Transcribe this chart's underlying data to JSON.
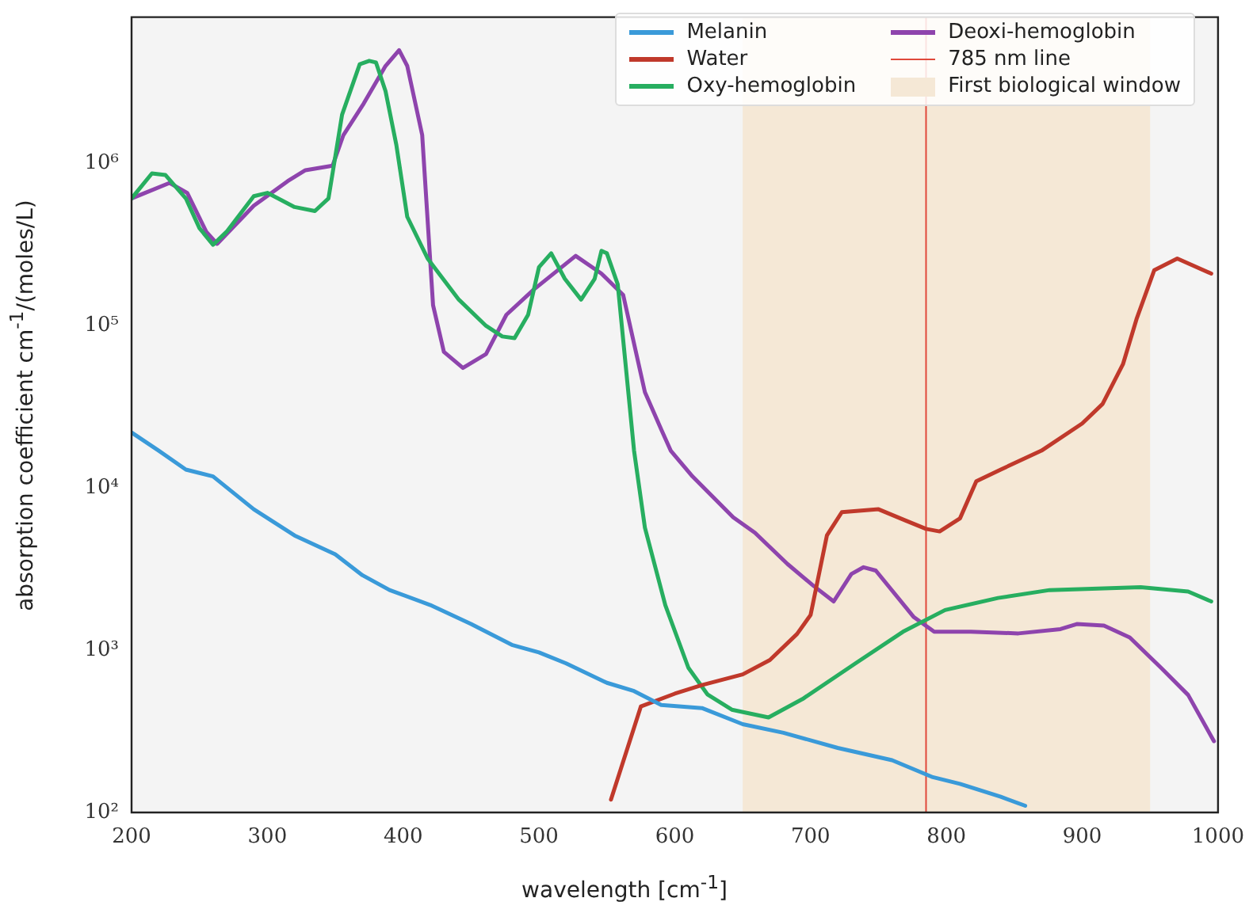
{
  "chart_data": {
    "type": "line",
    "xlabel": "wavelength [cm$^{-1}$]",
    "ylabel": "absorption coefficient cm$^{-1}$/(moles/L)",
    "xlim": [
      200,
      1000
    ],
    "xticks": [
      200,
      300,
      400,
      500,
      600,
      700,
      800,
      900,
      1000
    ],
    "ylim": [
      100,
      8000000
    ],
    "yticks": [
      {
        "value": 100,
        "label": "10²"
      },
      {
        "value": 1000,
        "label": "10³"
      },
      {
        "value": 10000,
        "label": "10⁴"
      },
      {
        "value": 100000,
        "label": "10⁵"
      },
      {
        "value": 1000000,
        "label": "10⁶"
      }
    ],
    "log": "y",
    "grid": false,
    "legend": "top right",
    "marker": "none",
    "line_style": "solid",
    "series": [
      {
        "name": "Melanin",
        "color": "#3a9ad9",
        "x": [
          200,
          220,
          240,
          260,
          290,
          320,
          350,
          370,
          390,
          420,
          450,
          480,
          500,
          520,
          550,
          570,
          590,
          620,
          650,
          680,
          720,
          760,
          790,
          810,
          840,
          858
        ],
        "values": [
          22000,
          17000,
          13000,
          11800,
          7400,
          5100,
          3900,
          2900,
          2350,
          1900,
          1450,
          1080,
          970,
          830,
          630,
          560,
          460,
          440,
          350,
          310,
          250,
          210,
          165,
          150,
          125,
          110
        ]
      },
      {
        "name": "Water",
        "color": "#c0392b",
        "x": [
          553,
          575,
          600,
          620,
          650,
          670,
          690,
          700,
          712,
          723,
          750,
          770,
          785,
          795,
          810,
          822,
          840,
          870,
          900,
          915,
          930,
          940,
          953,
          970,
          995
        ],
        "values": [
          120,
          450,
          540,
          610,
          710,
          870,
          1260,
          1650,
          5100,
          7100,
          7400,
          6300,
          5600,
          5400,
          6500,
          11000,
          13000,
          17000,
          25000,
          33000,
          58000,
          110000,
          220000,
          260000,
          210000
        ]
      },
      {
        "name": "Oxy-hemoglobin",
        "color": "#27ae60",
        "x": [
          200,
          215,
          225,
          240,
          250,
          260,
          270,
          290,
          300,
          320,
          335,
          345,
          355,
          368,
          375,
          380,
          387,
          395,
          403,
          418,
          441,
          461,
          473,
          482,
          492,
          500,
          509,
          519,
          531,
          541,
          546,
          550,
          558,
          570,
          578,
          593,
          610,
          624,
          642,
          669,
          694,
          733,
          768,
          799,
          838,
          876,
          943,
          978,
          995
        ],
        "values": [
          610000,
          870000,
          850000,
          610000,
          400000,
          316000,
          380000,
          630000,
          660000,
          540000,
          510000,
          610000,
          2000000,
          4100000,
          4300000,
          4200000,
          2800000,
          1300000,
          470000,
          260000,
          145000,
          100000,
          86000,
          84000,
          117000,
          230000,
          280000,
          195000,
          145000,
          195000,
          290000,
          280000,
          180000,
          17000,
          5700,
          1900,
          780,
          535,
          430,
          385,
          500,
          830,
          1300,
          1770,
          2100,
          2350,
          2450,
          2300,
          2000
        ]
      },
      {
        "name": "Deoxi-hemoglobin",
        "color": "#8e44ad",
        "x": [
          200,
          228,
          241,
          255,
          263,
          290,
          315,
          328,
          348,
          356,
          371,
          387,
          397,
          403,
          414,
          422,
          430,
          444,
          461,
          476,
          496,
          527,
          546,
          562,
          578,
          590,
          597,
          613,
          643,
          659,
          683,
          702,
          717,
          730,
          739,
          748,
          776,
          791,
          818,
          853,
          884,
          896,
          916,
          935,
          958,
          978,
          997
        ],
        "values": [
          610000,
          760000,
          660000,
          380000,
          320000,
          550000,
          780000,
          910000,
          970000,
          1500000,
          2350000,
          4000000,
          5000000,
          4000000,
          1500000,
          134000,
          69000,
          55000,
          67000,
          117000,
          167000,
          270000,
          210000,
          155000,
          39000,
          23000,
          17000,
          11800,
          6600,
          5300,
          3400,
          2500,
          2000,
          2950,
          3250,
          3100,
          1600,
          1300,
          1300,
          1270,
          1350,
          1450,
          1420,
          1200,
          780,
          530,
          275
        ]
      }
    ],
    "ref_lines": [
      {
        "axis": "x",
        "value": 785,
        "label": "785 nm line",
        "color": "#e0483a",
        "line_style": "solid"
      }
    ],
    "bands": [
      {
        "axis": "x",
        "from": 650,
        "to": 950,
        "label": "First biological window",
        "color": "#f5e8d6"
      }
    ]
  }
}
